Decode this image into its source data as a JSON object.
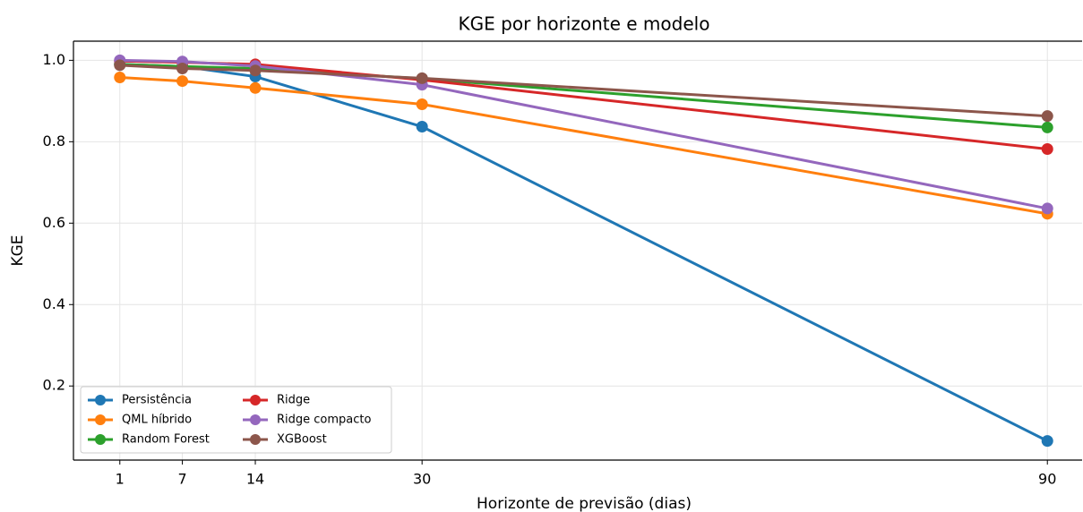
{
  "chart_data": {
    "type": "line",
    "title": "KGE por horizonte e modelo",
    "x_label": "Horizonte de previsão (dias)",
    "y_label": "KGE",
    "x": [
      1,
      7,
      14,
      30,
      90
    ],
    "series": [
      {
        "name": "Persistência",
        "color": "#1f77b4",
        "values": [
          0.99,
          0.985,
          0.96,
          0.837,
          0.065
        ]
      },
      {
        "name": "QML híbrido",
        "color": "#ff7f0e",
        "values": [
          0.958,
          0.949,
          0.932,
          0.892,
          0.623
        ]
      },
      {
        "name": "Random Forest",
        "color": "#2ca02c",
        "values": [
          0.99,
          0.985,
          0.98,
          0.955,
          0.835
        ]
      },
      {
        "name": "Ridge",
        "color": "#d62728",
        "values": [
          0.998,
          0.995,
          0.99,
          0.952,
          0.782
        ]
      },
      {
        "name": "Ridge compacto",
        "color": "#9467bd",
        "values": [
          1.0,
          0.997,
          0.986,
          0.94,
          0.636
        ]
      },
      {
        "name": "XGBoost",
        "color": "#8c564b",
        "values": [
          0.988,
          0.98,
          0.975,
          0.956,
          0.863
        ]
      }
    ],
    "xlim": [
      -3.45,
      94.45
    ],
    "xticks": [
      1,
      7,
      14,
      30,
      90
    ],
    "ylim": [
      0.018,
      1.047
    ],
    "yticks": [
      0.2,
      0.4,
      0.6,
      0.8,
      {
        "value": 1,
        "label": "1.0"
      }
    ],
    "grid": true,
    "legend": "lower left"
  }
}
